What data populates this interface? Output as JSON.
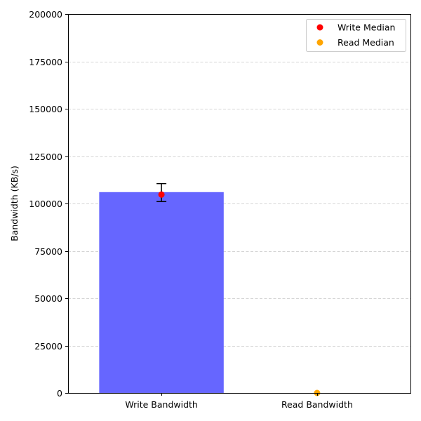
{
  "chart_data": {
    "type": "bar",
    "categories": [
      "Write Bandwidth",
      "Read Bandwidth"
    ],
    "values": [
      106000,
      0
    ],
    "error_bars": [
      {
        "category": "Write Bandwidth",
        "low": 101000,
        "high": 110500
      },
      {
        "category": "Read Bandwidth",
        "low": 0,
        "high": 0
      }
    ],
    "medians": [
      {
        "name": "Write Median",
        "category": "Write Bandwidth",
        "value": 104700,
        "color": "#ff0000"
      },
      {
        "name": "Read Median",
        "category": "Read Bandwidth",
        "value": 0,
        "color": "#ffa500"
      }
    ],
    "bar_color": "#6666ff",
    "ylabel": "Bandwidth (KB/s)",
    "xlabel": "",
    "title": "",
    "ylim": [
      0,
      200000
    ],
    "yticks": [
      0,
      25000,
      50000,
      75000,
      100000,
      125000,
      150000,
      175000,
      200000
    ],
    "grid": "y-dashed",
    "legend_position": "top-right"
  }
}
